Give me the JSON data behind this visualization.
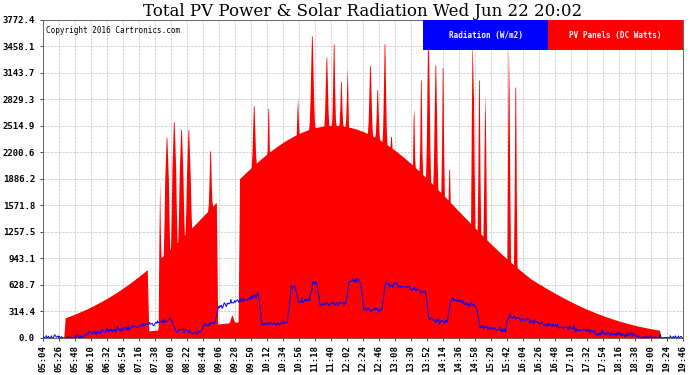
{
  "title": "Total PV Power & Solar Radiation Wed Jun 22 20:02",
  "copyright": "Copyright 2016 Cartronics.com",
  "background_color": "#ffffff",
  "plot_bg_color": "#ffffff",
  "grid_color": "#bbbbbb",
  "pv_color": "#ff0000",
  "radiation_color": "#0000ff",
  "yticks": [
    0.0,
    314.4,
    628.7,
    943.1,
    1257.5,
    1571.8,
    1886.2,
    2200.6,
    2514.9,
    2829.3,
    3143.7,
    3458.1,
    3772.4
  ],
  "ymax": 3772.4,
  "ymin": 0.0,
  "xtick_labels": [
    "05:04",
    "05:26",
    "05:48",
    "06:10",
    "06:32",
    "06:54",
    "07:16",
    "07:38",
    "08:00",
    "08:22",
    "08:44",
    "09:06",
    "09:28",
    "09:50",
    "10:12",
    "10:34",
    "10:56",
    "11:18",
    "11:40",
    "12:02",
    "12:24",
    "12:46",
    "13:08",
    "13:30",
    "13:52",
    "14:14",
    "14:36",
    "14:58",
    "15:20",
    "15:42",
    "16:04",
    "16:26",
    "16:48",
    "17:10",
    "17:32",
    "17:54",
    "18:16",
    "18:38",
    "19:00",
    "19:24",
    "19:46"
  ],
  "legend_radiation_label": "Radiation (W/m2)",
  "legend_pv_label": "PV Panels (DC Watts)",
  "legend_radiation_bg": "#0000ff",
  "legend_pv_bg": "#ff0000",
  "title_fontsize": 12,
  "axis_label_fontsize": 6.5,
  "radiation_scale": 5.98,
  "pv_max": 3772.4
}
